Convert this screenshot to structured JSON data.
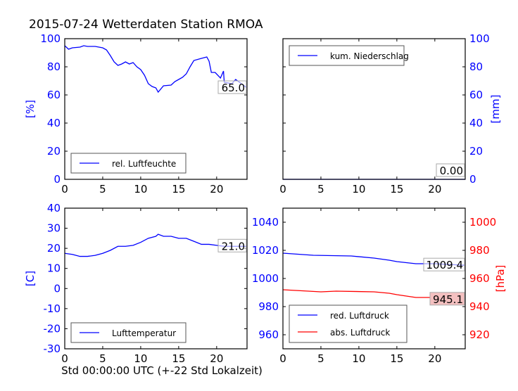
{
  "title": "2015-07-24 Wetterdaten Station RMOA",
  "xlabel": "Std 00:00:00 UTC (+-22 Std Lokalzeit)",
  "colors": {
    "blue": "#0000ff",
    "red": "#ff0000",
    "annot_bg": "#f4c0c0"
  },
  "chart_data": [
    {
      "type": "line",
      "id": "humidity",
      "ylabel": "[%]",
      "ylabel_side": "left",
      "xlim": [
        0,
        24
      ],
      "ylim": [
        0,
        100
      ],
      "xticks": [
        0,
        5,
        10,
        15,
        20
      ],
      "yticks": [
        0,
        20,
        40,
        60,
        80,
        100
      ],
      "legend": "lower-left",
      "annotation": "65.0",
      "series": [
        {
          "name": "rel. Luftfeuchte",
          "color": "#0000ff",
          "x": [
            0,
            0.5,
            1,
            2,
            2.5,
            3,
            4,
            5,
            5.5,
            6,
            6.5,
            7,
            7.5,
            8,
            8.5,
            9,
            9.5,
            10,
            10.5,
            11,
            11.5,
            12,
            12.3,
            13,
            14,
            14.5,
            15,
            15.5,
            16,
            16.5,
            17,
            18,
            18.7,
            19,
            19.3,
            19.8,
            20.5,
            20.9,
            21,
            22,
            22.5,
            23,
            24
          ],
          "y": [
            95,
            92.5,
            93.5,
            94,
            95,
            94.5,
            94.5,
            93.5,
            92,
            88,
            83.5,
            81,
            82,
            83.5,
            82,
            83,
            80,
            78,
            74,
            68,
            66,
            65,
            62,
            66.5,
            67,
            69.5,
            71,
            72.5,
            75,
            80,
            84.5,
            86,
            87,
            84,
            76,
            76,
            72,
            77,
            69,
            68,
            71,
            69,
            65
          ]
        }
      ]
    },
    {
      "type": "line",
      "id": "precip",
      "ylabel": "[mm]",
      "ylabel_side": "right",
      "xlim": [
        0,
        24
      ],
      "ylim": [
        0,
        100
      ],
      "xticks": [
        0,
        5,
        10,
        15,
        20
      ],
      "yticks": [
        0,
        20,
        40,
        60,
        80,
        100
      ],
      "legend": "upper-left",
      "annotation": "0.00",
      "series": [
        {
          "name": "kum. Niederschlag",
          "color": "#0000ff",
          "x": [
            0,
            24
          ],
          "y": [
            0,
            0
          ]
        }
      ]
    },
    {
      "type": "line",
      "id": "temperature",
      "ylabel": "[C]",
      "ylabel_side": "left",
      "xlim": [
        0,
        24
      ],
      "ylim": [
        -30,
        40
      ],
      "xticks": [
        0,
        5,
        10,
        15,
        20
      ],
      "yticks": [
        -30,
        -20,
        -10,
        0,
        10,
        20,
        30,
        40
      ],
      "legend": "lower-left",
      "annotation": "21.0",
      "series": [
        {
          "name": "Lufttemperatur",
          "color": "#0000ff",
          "x": [
            0,
            1,
            2,
            3,
            4,
            5,
            6,
            7,
            8,
            9,
            10,
            11,
            12,
            12.3,
            13,
            14,
            15,
            16,
            17,
            18,
            19,
            20,
            21,
            24
          ],
          "y": [
            17.5,
            17,
            16,
            16,
            16.5,
            17.5,
            19,
            21,
            21,
            21.5,
            23,
            25,
            26,
            27,
            26,
            26,
            25,
            25,
            23.5,
            22,
            22,
            21.5,
            21,
            21
          ]
        }
      ]
    },
    {
      "type": "line",
      "id": "pressure",
      "ylabel": "[hPa]",
      "ylabel_side": "right",
      "xlim": [
        0,
        24
      ],
      "ylim": [
        950,
        1050
      ],
      "ylim_right": [
        910,
        1010
      ],
      "xticks": [
        0,
        5,
        10,
        15,
        20
      ],
      "yticks": [
        960,
        980,
        1000,
        1020,
        1040
      ],
      "yticks_right": [
        920,
        940,
        960,
        980,
        1000
      ],
      "legend": "lower-left",
      "annotation": "1009.4",
      "annotation_right": "945.1",
      "series": [
        {
          "name": "red. Luftdruck",
          "color": "#0000ff",
          "axis": "left",
          "x": [
            0,
            4,
            9,
            12,
            14,
            15,
            17.5,
            20,
            24
          ],
          "y": [
            1018,
            1016.5,
            1016,
            1014.5,
            1013,
            1012,
            1010.5,
            1010.5,
            1009.4
          ]
        },
        {
          "name": "abs. Luftdruck",
          "color": "#ff0000",
          "axis": "right",
          "x": [
            0,
            5,
            7,
            12,
            14,
            15,
            17.5,
            20,
            24
          ],
          "y": [
            952,
            950.5,
            951,
            950.5,
            949.5,
            948.5,
            946.5,
            946.5,
            945.1
          ]
        }
      ]
    }
  ]
}
